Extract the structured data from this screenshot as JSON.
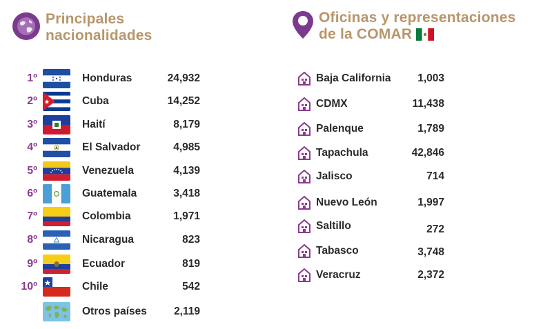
{
  "nationalities": {
    "title_line1": "Principales",
    "title_line2": "nacionalidades",
    "rows": [
      {
        "rank": "1º",
        "country": "Honduras",
        "count": "24,932",
        "flag": "honduras-flag-icon"
      },
      {
        "rank": "2º",
        "country": "Cuba",
        "count": "14,252",
        "flag": "cuba-flag-icon"
      },
      {
        "rank": "3º",
        "country": "Haití",
        "count": "8,179",
        "flag": "haiti-flag-icon"
      },
      {
        "rank": "4º",
        "country": "El Salvador",
        "count": "4,985",
        "flag": "el-salvador-flag-icon"
      },
      {
        "rank": "5º",
        "country": "Venezuela",
        "count": "4,139",
        "flag": "venezuela-flag-icon"
      },
      {
        "rank": "6º",
        "country": "Guatemala",
        "count": "3,418",
        "flag": "guatemala-flag-icon"
      },
      {
        "rank": "7º",
        "country": "Colombia",
        "count": "1,971",
        "flag": "colombia-flag-icon"
      },
      {
        "rank": "8º",
        "country": "Nicaragua",
        "count": "823",
        "flag": "nicaragua-flag-icon"
      },
      {
        "rank": "9º",
        "country": "Ecuador",
        "count": "819",
        "flag": "ecuador-flag-icon"
      },
      {
        "rank": "10º",
        "country": "Chile",
        "count": "542",
        "flag": "chile-flag-icon"
      },
      {
        "rank": "",
        "country": "Otros países",
        "count": "2,119",
        "flag": "world-map-icon"
      }
    ]
  },
  "offices": {
    "title_line1": "Oficinas y representaciones",
    "title_line2": "de la COMAR",
    "title_flag": "mexico-flag-icon",
    "rows": [
      {
        "name": "Baja California",
        "count": "1,003"
      },
      {
        "name": "CDMX",
        "count": "11,438"
      },
      {
        "name": "Palenque",
        "count": "1,789"
      },
      {
        "name": "Tapachula",
        "count": "42,846"
      },
      {
        "name": "Jalisco",
        "count": "714"
      },
      {
        "name": "Nuevo León",
        "count": "1,997"
      },
      {
        "name": "Saltillo",
        "count": "272"
      },
      {
        "name": "Tabasco",
        "count": "3,748"
      },
      {
        "name": "Veracruz",
        "count": "2,372"
      }
    ]
  },
  "colors": {
    "accent_purple": "#8b3b8f",
    "title_gold": "#b8956a",
    "text": "#2a2a2a"
  }
}
